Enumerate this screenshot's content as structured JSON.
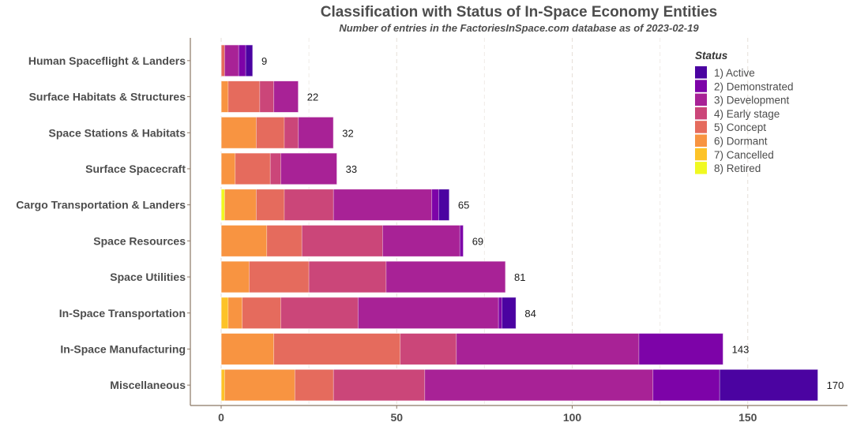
{
  "chart_data": {
    "type": "bar",
    "orientation": "horizontal",
    "stacked": true,
    "title": "Classification with Status of In-Space Economy Entities",
    "subtitle": "Number of entries in the FactoriesInSpace.com database as of 2023-02-19",
    "xlabel": "",
    "ylabel": "",
    "xlim": [
      0,
      175
    ],
    "xticks": [
      "0",
      "50",
      "100",
      "150"
    ],
    "xtick_values": [
      0,
      50,
      100,
      150
    ],
    "grid": "vertical dashed",
    "legend": {
      "title": "Status",
      "position": "top-right",
      "items": [
        "1)  Active",
        "2)  Demonstrated",
        "3)  Development",
        "4)  Early stage",
        "5)  Concept",
        "6)  Dormant",
        "7) Cancelled",
        "8) Retired"
      ]
    },
    "categories": [
      "Human Spaceflight & Landers",
      "Surface Habitats & Structures",
      "Space Stations & Habitats",
      "Surface Spacecraft",
      "Cargo Transportation & Landers",
      "Space Resources",
      "Space Utilities",
      "In-Space Transportation",
      "In-Space Manufacturing",
      "Miscellaneous"
    ],
    "totals": [
      9,
      22,
      32,
      33,
      65,
      69,
      81,
      84,
      143,
      170
    ],
    "stack_order": [
      "8) Retired",
      "7) Cancelled",
      "6) Dormant",
      "5) Concept",
      "4) Early stage",
      "3) Development",
      "2) Demonstrated",
      "1) Active"
    ],
    "series": [
      {
        "name": "8) Retired",
        "color": "#f0f921",
        "values": [
          0,
          0,
          0,
          0,
          1,
          0,
          0,
          0,
          0,
          0
        ]
      },
      {
        "name": "7) Cancelled",
        "color": "#fdc328",
        "values": [
          0,
          0,
          0,
          0,
          0,
          0,
          0,
          2,
          0,
          1
        ]
      },
      {
        "name": "6) Dormant",
        "color": "#f89441",
        "values": [
          0,
          2,
          10,
          4,
          9,
          13,
          8,
          4,
          15,
          20
        ]
      },
      {
        "name": "5) Concept",
        "color": "#e56b5d",
        "values": [
          1,
          9,
          8,
          10,
          8,
          10,
          17,
          11,
          36,
          11
        ]
      },
      {
        "name": "4) Early stage",
        "color": "#cb4679",
        "values": [
          0,
          4,
          4,
          3,
          14,
          23,
          22,
          22,
          16,
          26
        ]
      },
      {
        "name": "3) Development",
        "color": "#a82296",
        "values": [
          4,
          7,
          10,
          16,
          28,
          22,
          34,
          40,
          52,
          65
        ]
      },
      {
        "name": "2) Demonstrated",
        "color": "#7d03a8",
        "values": [
          2,
          0,
          0,
          0,
          2,
          1,
          0,
          1,
          24,
          19
        ]
      },
      {
        "name": "1) Active",
        "color": "#4b03a1",
        "values": [
          2,
          0,
          0,
          0,
          3,
          0,
          0,
          4,
          0,
          28
        ]
      }
    ]
  },
  "colors": {
    "axis": "#8b7765",
    "grid": "#e8e0d8",
    "text": "#4d4d4d"
  }
}
